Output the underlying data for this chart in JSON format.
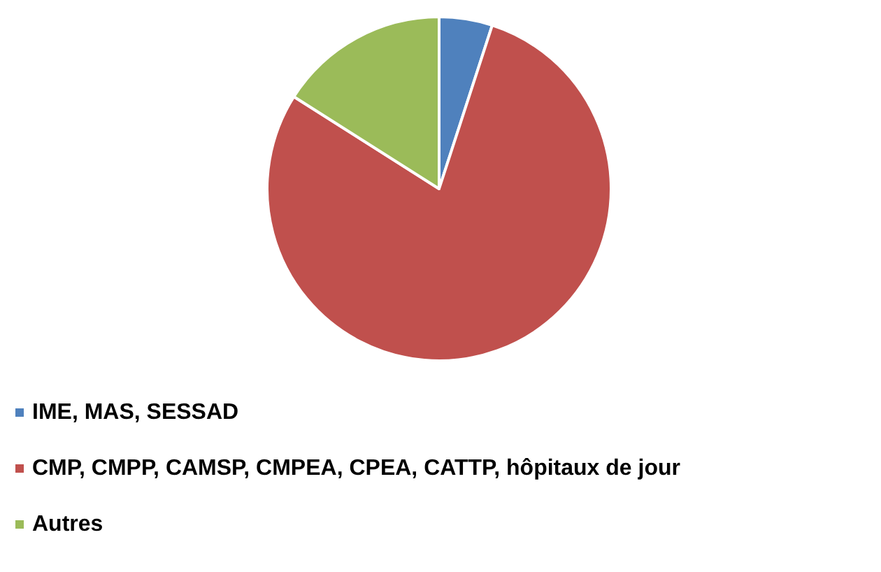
{
  "chart_data": {
    "type": "pie",
    "categories": [
      "IME, MAS, SESSAD",
      "CMP, CMPP, CAMSP, CMPEA, CPEA, CATTP, hôpitaux de jour",
      "Autres"
    ],
    "values": [
      5,
      79,
      16
    ],
    "colors": [
      "#4f81bd",
      "#c0504d",
      "#9bbb59"
    ],
    "legend": "bottom"
  }
}
